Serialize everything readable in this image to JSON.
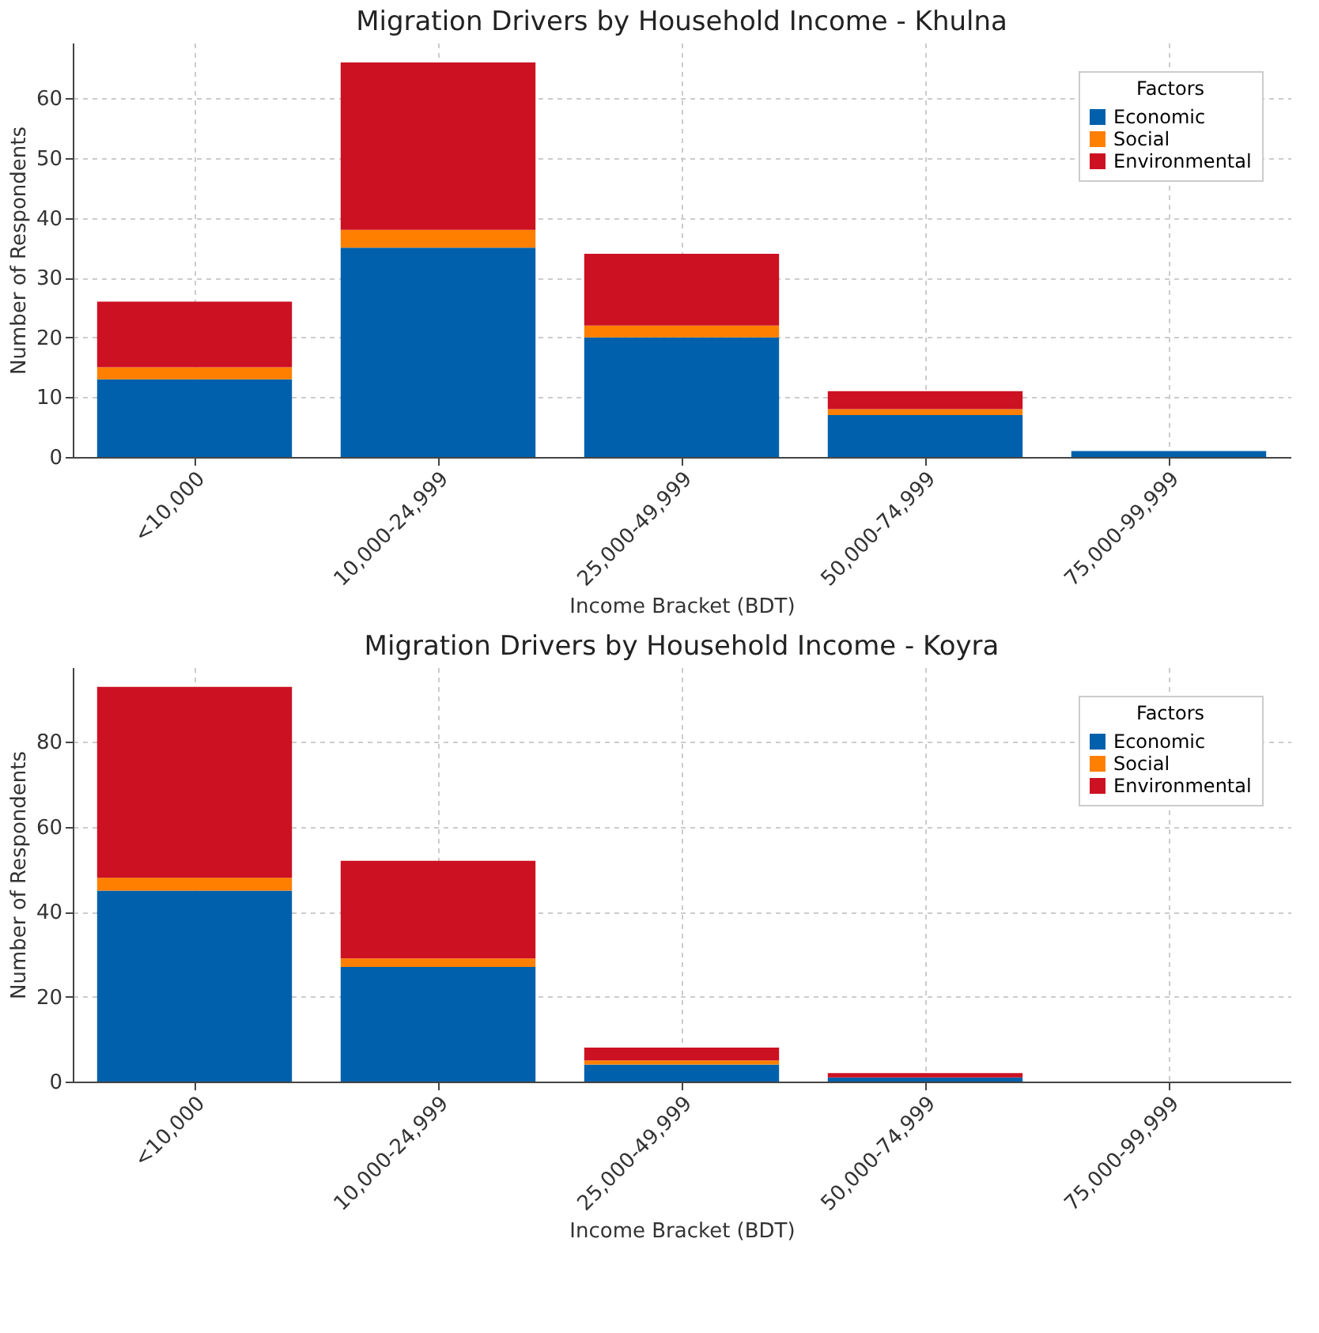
{
  "chart_data": [
    {
      "type": "bar",
      "title": "Migration Drivers by Household Income - Khulna",
      "xlabel": "Income Bracket (BDT)",
      "ylabel": "Number of Respondents",
      "legend_title": "Factors",
      "categories": [
        "<10,000",
        "10,000-24,999",
        "25,000-49,999",
        "50,000-74,999",
        "75,000-99,999"
      ],
      "stacked": true,
      "series": [
        {
          "name": "Economic",
          "color": "#0060ab",
          "values": [
            13,
            35,
            20,
            7,
            1
          ]
        },
        {
          "name": "Social",
          "color": "#ff7f00",
          "values": [
            2,
            3,
            2,
            1,
            0
          ]
        },
        {
          "name": "Environmental",
          "color": "#cc1122",
          "values": [
            11,
            28,
            12,
            3,
            0
          ]
        }
      ],
      "ylim": [
        0,
        69.3
      ],
      "yticks": [
        0,
        10,
        20,
        30,
        40,
        50,
        60
      ],
      "grid": true,
      "legend": "top right"
    },
    {
      "type": "bar",
      "title": "Migration Drivers by Household Income - Koyra",
      "xlabel": "Income Bracket (BDT)",
      "ylabel": "Number of Respondents",
      "legend_title": "Factors",
      "categories": [
        "<10,000",
        "10,000-24,999",
        "25,000-49,999",
        "50,000-74,999",
        "75,000-99,999"
      ],
      "stacked": true,
      "series": [
        {
          "name": "Economic",
          "color": "#0060ab",
          "values": [
            45,
            27,
            4,
            1,
            0
          ]
        },
        {
          "name": "Social",
          "color": "#ff7f00",
          "values": [
            3,
            2,
            1,
            0,
            0
          ]
        },
        {
          "name": "Environmental",
          "color": "#cc1122",
          "values": [
            45,
            23,
            3,
            1,
            0
          ]
        }
      ],
      "ylim": [
        0,
        97.6
      ],
      "yticks": [
        0,
        20,
        40,
        60,
        80
      ],
      "grid": true,
      "legend": "top right"
    }
  ]
}
